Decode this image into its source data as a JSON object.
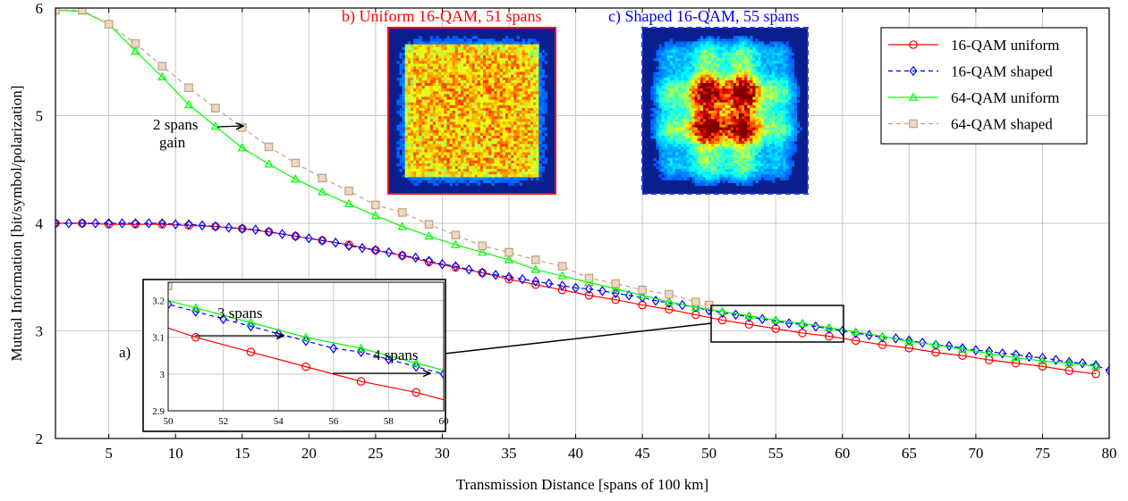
{
  "chart_data": {
    "type": "line",
    "title": "",
    "xlabel": "Transmission Distance [spans of 100 km]",
    "ylabel": "Mutual Information [bit/symbol/polarization]",
    "xlim": [
      1,
      80
    ],
    "ylim": [
      2,
      6
    ],
    "x_ticks": [
      "5",
      "10",
      "15",
      "20",
      "25",
      "30",
      "35",
      "40",
      "45",
      "50",
      "55",
      "60",
      "65",
      "70",
      "75",
      "80"
    ],
    "y_ticks": [
      "2",
      "3",
      "4",
      "5",
      "6"
    ],
    "grid": true,
    "legend_position": "top-right",
    "series": [
      {
        "name": "16-QAM uniform",
        "color": "#ff0000",
        "marker": "circle",
        "line": "solid",
        "points": [
          [
            1,
            4.0
          ],
          [
            3,
            4.0
          ],
          [
            5,
            3.99
          ],
          [
            7,
            3.99
          ],
          [
            9,
            3.99
          ],
          [
            11,
            3.98
          ],
          [
            13,
            3.97
          ],
          [
            15,
            3.95
          ],
          [
            17,
            3.92
          ],
          [
            19,
            3.88
          ],
          [
            21,
            3.84
          ],
          [
            23,
            3.8
          ],
          [
            25,
            3.75
          ],
          [
            27,
            3.7
          ],
          [
            29,
            3.64
          ],
          [
            31,
            3.59
          ],
          [
            33,
            3.54
          ],
          [
            35,
            3.48
          ],
          [
            37,
            3.43
          ],
          [
            39,
            3.38
          ],
          [
            41,
            3.33
          ],
          [
            43,
            3.29
          ],
          [
            45,
            3.24
          ],
          [
            47,
            3.2
          ],
          [
            49,
            3.15
          ],
          [
            51,
            3.1
          ],
          [
            53,
            3.06
          ],
          [
            55,
            3.02
          ],
          [
            57,
            2.98
          ],
          [
            59,
            2.95
          ],
          [
            61,
            2.91
          ],
          [
            63,
            2.87
          ],
          [
            65,
            2.84
          ],
          [
            67,
            2.8
          ],
          [
            69,
            2.77
          ],
          [
            71,
            2.73
          ],
          [
            73,
            2.7
          ],
          [
            75,
            2.67
          ],
          [
            77,
            2.63
          ],
          [
            79,
            2.6
          ]
        ]
      },
      {
        "name": "16-QAM shaped",
        "color": "#0000ff",
        "marker": "diamond",
        "line": "dashed",
        "points": [
          [
            1,
            4.0
          ],
          [
            2,
            4.0
          ],
          [
            3,
            4.0
          ],
          [
            4,
            4.0
          ],
          [
            5,
            4.0
          ],
          [
            6,
            4.0
          ],
          [
            7,
            4.0
          ],
          [
            8,
            4.0
          ],
          [
            9,
            4.0
          ],
          [
            10,
            3.99
          ],
          [
            11,
            3.99
          ],
          [
            12,
            3.98
          ],
          [
            13,
            3.97
          ],
          [
            14,
            3.96
          ],
          [
            15,
            3.95
          ],
          [
            16,
            3.94
          ],
          [
            17,
            3.92
          ],
          [
            18,
            3.9
          ],
          [
            19,
            3.88
          ],
          [
            20,
            3.86
          ],
          [
            21,
            3.84
          ],
          [
            22,
            3.82
          ],
          [
            23,
            3.79
          ],
          [
            24,
            3.77
          ],
          [
            25,
            3.75
          ],
          [
            26,
            3.73
          ],
          [
            27,
            3.7
          ],
          [
            28,
            3.68
          ],
          [
            29,
            3.65
          ],
          [
            30,
            3.62
          ],
          [
            31,
            3.6
          ],
          [
            32,
            3.57
          ],
          [
            33,
            3.54
          ],
          [
            34,
            3.52
          ],
          [
            35,
            3.5
          ],
          [
            36,
            3.48
          ],
          [
            37,
            3.46
          ],
          [
            38,
            3.44
          ],
          [
            39,
            3.42
          ],
          [
            40,
            3.4
          ],
          [
            41,
            3.39
          ],
          [
            42,
            3.37
          ],
          [
            43,
            3.35
          ],
          [
            44,
            3.33
          ],
          [
            45,
            3.31
          ],
          [
            46,
            3.28
          ],
          [
            47,
            3.26
          ],
          [
            48,
            3.24
          ],
          [
            49,
            3.22
          ],
          [
            50,
            3.19
          ],
          [
            51,
            3.17
          ],
          [
            52,
            3.15
          ],
          [
            53,
            3.13
          ],
          [
            54,
            3.11
          ],
          [
            55,
            3.09
          ],
          [
            56,
            3.07
          ],
          [
            57,
            3.06
          ],
          [
            58,
            3.04
          ],
          [
            59,
            3.02
          ],
          [
            60,
            3.0
          ],
          [
            61,
            2.98
          ],
          [
            62,
            2.96
          ],
          [
            63,
            2.94
          ],
          [
            64,
            2.93
          ],
          [
            65,
            2.91
          ],
          [
            66,
            2.89
          ],
          [
            67,
            2.87
          ],
          [
            68,
            2.86
          ],
          [
            69,
            2.84
          ],
          [
            70,
            2.82
          ],
          [
            71,
            2.81
          ],
          [
            72,
            2.79
          ],
          [
            73,
            2.78
          ],
          [
            74,
            2.76
          ],
          [
            75,
            2.75
          ],
          [
            76,
            2.73
          ],
          [
            77,
            2.71
          ],
          [
            78,
            2.7
          ],
          [
            79,
            2.68
          ],
          [
            80,
            2.63
          ]
        ]
      },
      {
        "name": "64-QAM uniform",
        "color": "#00ff00",
        "marker": "triangle",
        "line": "solid",
        "points": [
          [
            1,
            5.98
          ],
          [
            3,
            5.97
          ],
          [
            5,
            5.85
          ],
          [
            7,
            5.6
          ],
          [
            9,
            5.36
          ],
          [
            11,
            5.1
          ],
          [
            13,
            4.9
          ],
          [
            15,
            4.7
          ],
          [
            17,
            4.55
          ],
          [
            19,
            4.41
          ],
          [
            21,
            4.29
          ],
          [
            23,
            4.18
          ],
          [
            25,
            4.07
          ],
          [
            27,
            3.97
          ],
          [
            29,
            3.88
          ],
          [
            31,
            3.8
          ],
          [
            33,
            3.73
          ],
          [
            35,
            3.66
          ],
          [
            37,
            3.57
          ],
          [
            39,
            3.51
          ],
          [
            41,
            3.45
          ],
          [
            43,
            3.39
          ],
          [
            45,
            3.33
          ],
          [
            47,
            3.27
          ],
          [
            49,
            3.22
          ],
          [
            51,
            3.18
          ],
          [
            53,
            3.14
          ],
          [
            55,
            3.1
          ],
          [
            57,
            3.07
          ],
          [
            59,
            3.03
          ],
          [
            61,
            2.99
          ],
          [
            63,
            2.95
          ],
          [
            65,
            2.9
          ],
          [
            67,
            2.87
          ],
          [
            69,
            2.83
          ],
          [
            71,
            2.79
          ],
          [
            73,
            2.75
          ],
          [
            75,
            2.72
          ],
          [
            77,
            2.7
          ],
          [
            79,
            2.67
          ]
        ]
      },
      {
        "name": "64-QAM shaped",
        "color": "#c8a07c",
        "marker": "square",
        "line": "dashed",
        "points": [
          [
            1,
            5.98
          ],
          [
            3,
            5.98
          ],
          [
            5,
            5.85
          ],
          [
            7,
            5.67
          ],
          [
            9,
            5.46
          ],
          [
            11,
            5.26
          ],
          [
            13,
            5.07
          ],
          [
            15,
            4.89
          ],
          [
            17,
            4.71
          ],
          [
            19,
            4.56
          ],
          [
            21,
            4.42
          ],
          [
            23,
            4.3
          ],
          [
            25,
            4.17
          ],
          [
            27,
            4.1
          ],
          [
            29,
            3.99
          ],
          [
            31,
            3.89
          ],
          [
            33,
            3.79
          ],
          [
            35,
            3.73
          ],
          [
            37,
            3.66
          ],
          [
            39,
            3.6
          ],
          [
            41,
            3.49
          ],
          [
            43,
            3.44
          ],
          [
            45,
            3.38
          ],
          [
            47,
            3.34
          ],
          [
            49,
            3.27
          ],
          [
            50,
            3.24
          ]
        ]
      }
    ],
    "annotations": {
      "gain_64": "2 spans\ngain",
      "panel_a": "a)",
      "panel_b": "b) Uniform 16-QAM, 51 spans",
      "panel_c": "c) Shaped 16-QAM, 55 spans",
      "inset_3spans": "3 spans",
      "inset_4spans": "4 spans"
    },
    "inset": {
      "xlim": [
        50,
        60
      ],
      "ylim": [
        2.9,
        3.25
      ],
      "x_ticks": [
        "50",
        "52",
        "54",
        "56",
        "58",
        "60"
      ],
      "y_ticks": [
        "2.9",
        "3",
        "3.1",
        "3.2"
      ]
    }
  },
  "colors": {
    "panel_b_title": "#ff0000",
    "panel_c_title": "#0000ff",
    "panel_b_border": "#e8141e",
    "panel_c_border": "#2a3ad8"
  }
}
